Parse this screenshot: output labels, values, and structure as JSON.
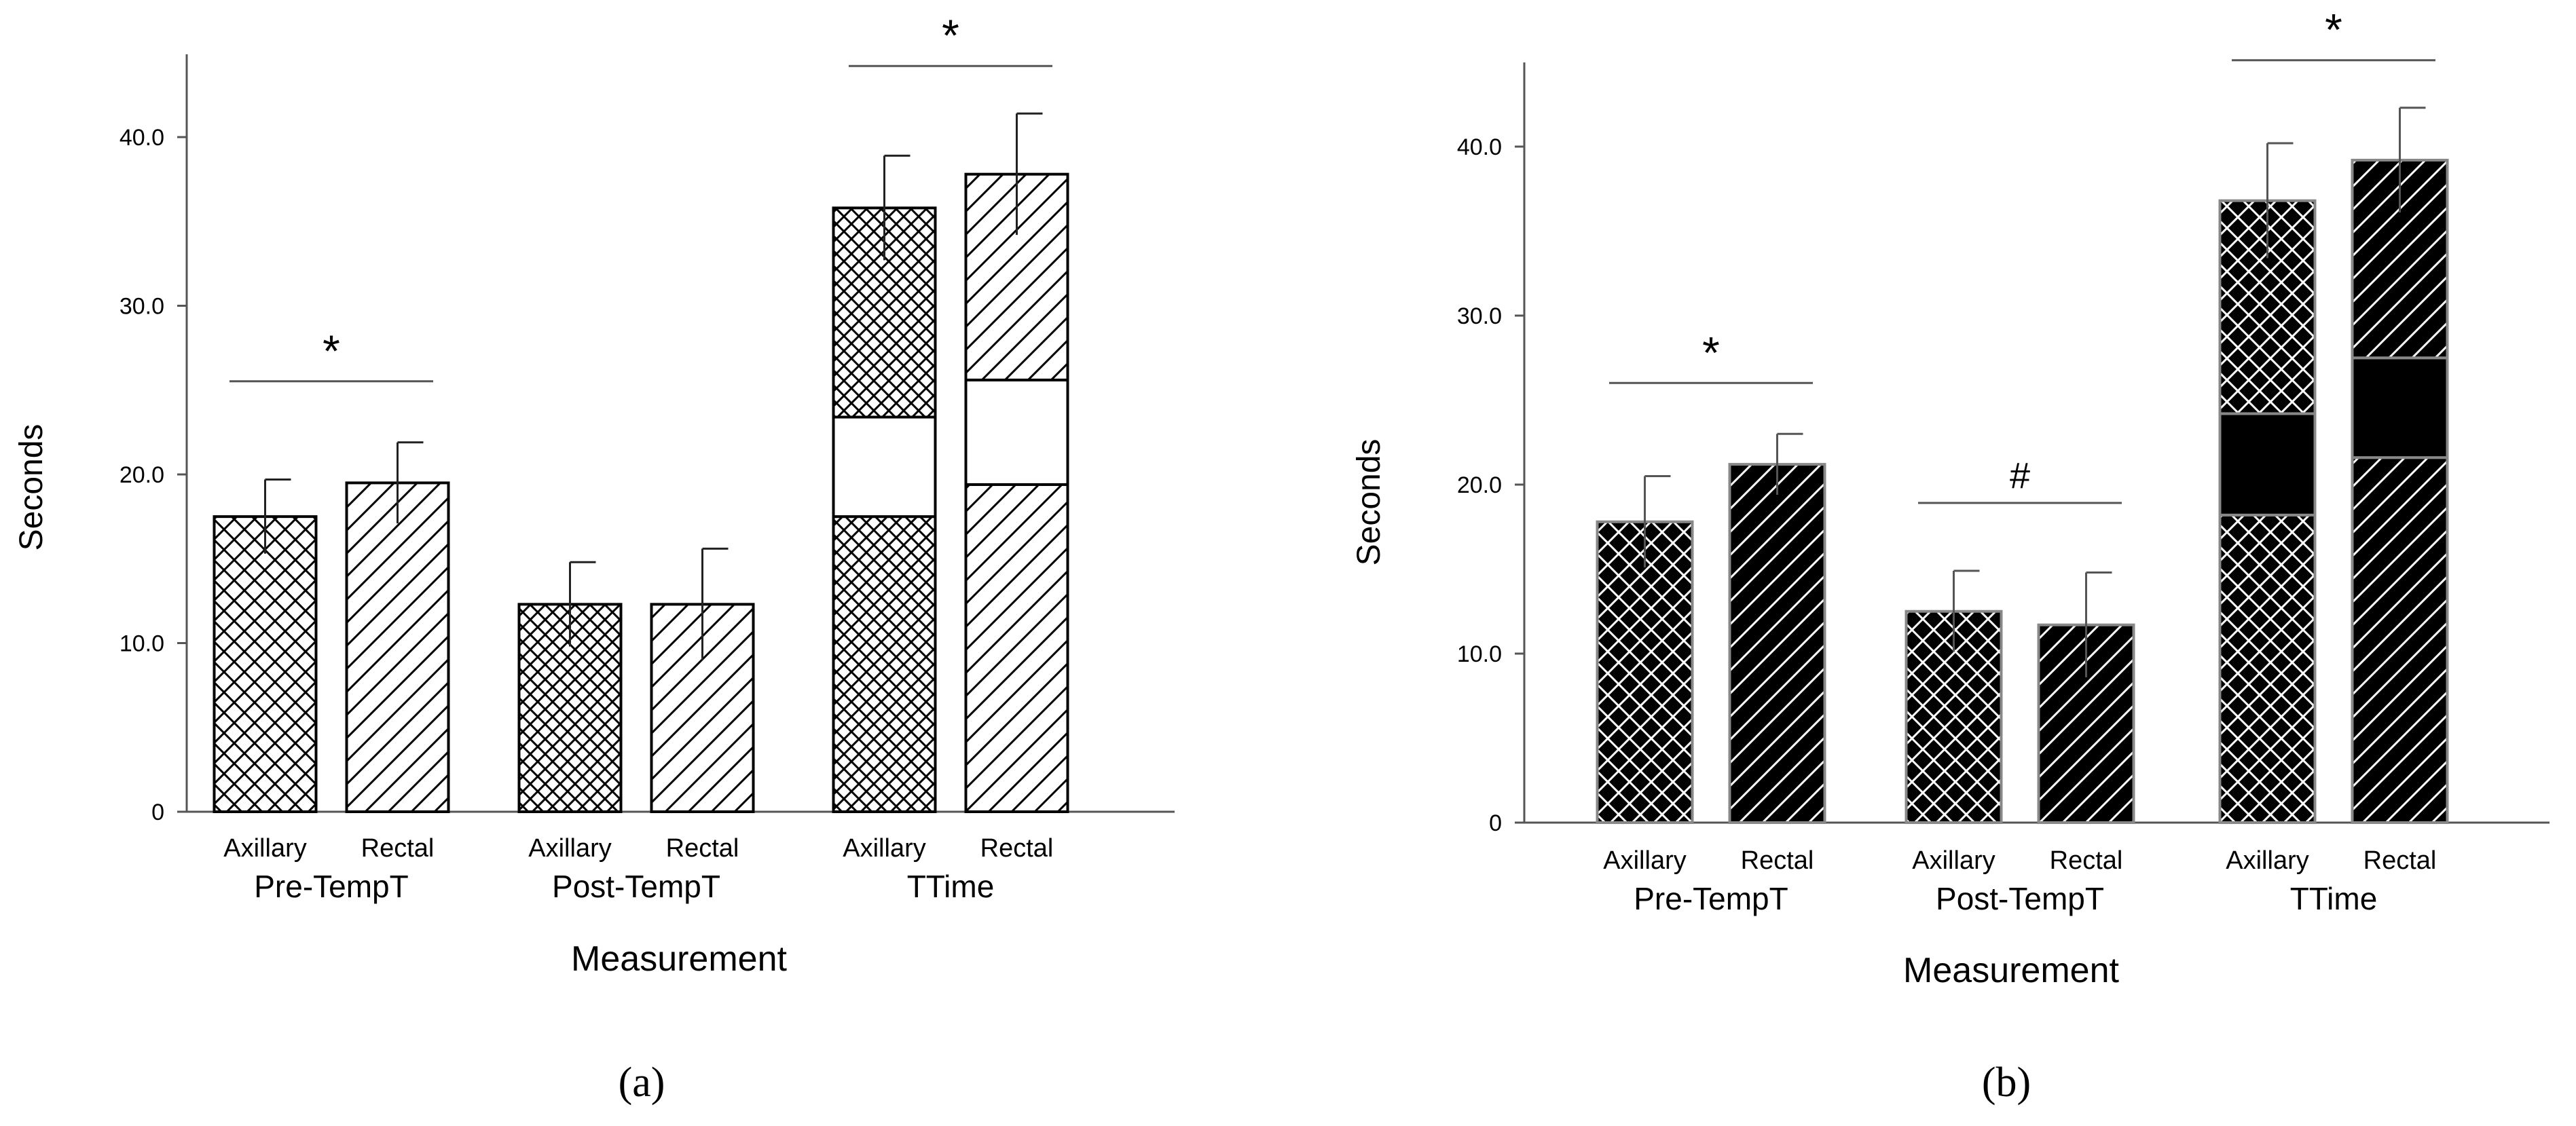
{
  "chart_data": [
    {
      "panel": "a",
      "type": "bar",
      "style": "hatched",
      "ylabel": "Seconds",
      "xlabel": "Measurement",
      "ylim": [
        0,
        45
      ],
      "yticks": [
        "0",
        "10.0",
        "20.0",
        "30.0",
        "40.0"
      ],
      "groups": [
        {
          "label": "Pre-TempT",
          "significance": "*",
          "bars": [
            {
              "label": "Axillary",
              "pattern": "crosshatch",
              "value": 17.5,
              "error": 2.2
            },
            {
              "label": "Rectal",
              "pattern": "diagonal",
              "value": 19.5,
              "error": 2.4
            }
          ]
        },
        {
          "label": "Post-TempT",
          "significance": "",
          "bars": [
            {
              "label": "Axillary",
              "pattern": "crosshatch",
              "value": 12.3,
              "error": 2.5
            },
            {
              "label": "Rectal",
              "pattern": "diagonal",
              "value": 12.3,
              "error": 3.3
            }
          ]
        },
        {
          "label": "TTime",
          "significance": "*",
          "bars": [
            {
              "label": "Axillary",
              "pattern": "crosshatch",
              "value": 35.8,
              "error": 3.1,
              "segments": [
                17.5,
                5.9,
                12.4
              ]
            },
            {
              "label": "Rectal",
              "pattern": "diagonal",
              "value": 37.8,
              "error": 3.6,
              "segments": [
                19.4,
                6.2,
                12.2
              ]
            }
          ]
        }
      ]
    },
    {
      "panel": "b",
      "type": "bar",
      "style": "dark",
      "ylabel": "Seconds",
      "xlabel": "Measurement",
      "ylim": [
        0,
        45
      ],
      "yticks": [
        "0",
        "10.0",
        "20.0",
        "30.0",
        "40.0"
      ],
      "groups": [
        {
          "label": "Pre-TempT",
          "significance": "*",
          "bars": [
            {
              "label": "Axillary",
              "pattern": "crosshatch",
              "value": 17.8,
              "error": 2.7
            },
            {
              "label": "Rectal",
              "pattern": "diagonal",
              "value": 21.2,
              "error": 1.8
            }
          ]
        },
        {
          "label": "Post-TempT",
          "significance": "#",
          "bars": [
            {
              "label": "Axillary",
              "pattern": "crosshatch",
              "value": 12.5,
              "error": 2.4
            },
            {
              "label": "Rectal",
              "pattern": "diagonal",
              "value": 11.7,
              "error": 3.1
            }
          ]
        },
        {
          "label": "TTime",
          "significance": "*",
          "bars": [
            {
              "label": "Axillary",
              "pattern": "crosshatch",
              "value": 36.8,
              "error": 3.4,
              "segments": [
                18.2,
                6.0,
                12.6
              ]
            },
            {
              "label": "Rectal",
              "pattern": "diagonal",
              "value": 39.2,
              "error": 3.1,
              "segments": [
                21.6,
                5.9,
                11.7
              ]
            }
          ]
        }
      ]
    }
  ],
  "captions": [
    "(a)",
    "(b)"
  ]
}
